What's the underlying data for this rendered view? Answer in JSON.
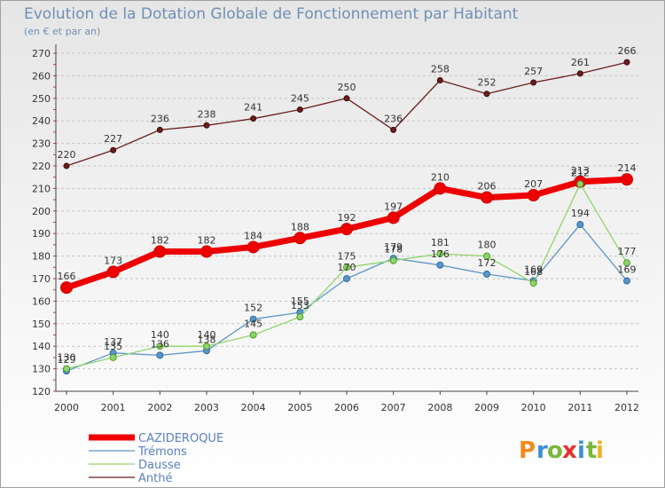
{
  "chart_data": {
    "type": "line",
    "title": "Evolution de la Dotation Globale de Fonctionnement par Habitant",
    "subtitle": "(en € et par an)",
    "xlabel": "",
    "ylabel": "",
    "x": [
      "2000",
      "2001",
      "2002",
      "2003",
      "2004",
      "2005",
      "2006",
      "2007",
      "2008",
      "2009",
      "2010",
      "2011",
      "2012"
    ],
    "ylim": [
      120,
      270
    ],
    "yticks": [
      120,
      130,
      140,
      150,
      160,
      170,
      180,
      190,
      200,
      210,
      220,
      230,
      240,
      250,
      260,
      270
    ],
    "grid": true,
    "legend_position": "bottom-left",
    "series": [
      {
        "name": "Anthé",
        "color": "#6b1c1c",
        "values": [
          220,
          227,
          236,
          238,
          241,
          245,
          250,
          236,
          258,
          252,
          257,
          261,
          266
        ],
        "labels": [
          "220",
          "227",
          "236",
          "238",
          "241",
          "245",
          "250",
          "236",
          "258",
          "252",
          "257",
          "261",
          "266"
        ]
      },
      {
        "name": "CAZIDEROQUE",
        "color": "#ee0000",
        "values": [
          166,
          173,
          182,
          182,
          184,
          188,
          192,
          197,
          210,
          206,
          207,
          213,
          214
        ],
        "labels": [
          "166",
          "173",
          "182",
          "182",
          "184",
          "188",
          "192",
          "197",
          "210",
          "206",
          "207",
          "213",
          "214"
        ]
      },
      {
        "name": "Trémons",
        "color": "#5b95c9",
        "values": [
          129,
          137,
          136,
          138,
          152,
          155,
          170,
          179,
          176,
          172,
          169,
          194,
          169
        ],
        "labels": [
          "129",
          "137",
          "136",
          "138",
          "152",
          "155",
          "170",
          "179",
          "176",
          "172",
          "169",
          "194",
          "169"
        ]
      },
      {
        "name": "Dausse",
        "color": "#8ed66b",
        "values": [
          130,
          135,
          140,
          140,
          145,
          153,
          175,
          178,
          181,
          180,
          168,
          212,
          177
        ],
        "labels": [
          "130",
          "135",
          "140",
          "140",
          "145",
          "153",
          "175",
          "178",
          "181",
          "180",
          "168",
          "212",
          "177"
        ]
      }
    ],
    "legend": [
      "CAZIDEROQUE",
      "Trémons",
      "Dausse",
      "Anthé"
    ]
  },
  "logo": {
    "text": "Proxiti",
    "letters": [
      "P",
      "r",
      "o",
      "x",
      "i",
      "t",
      "i"
    ]
  }
}
